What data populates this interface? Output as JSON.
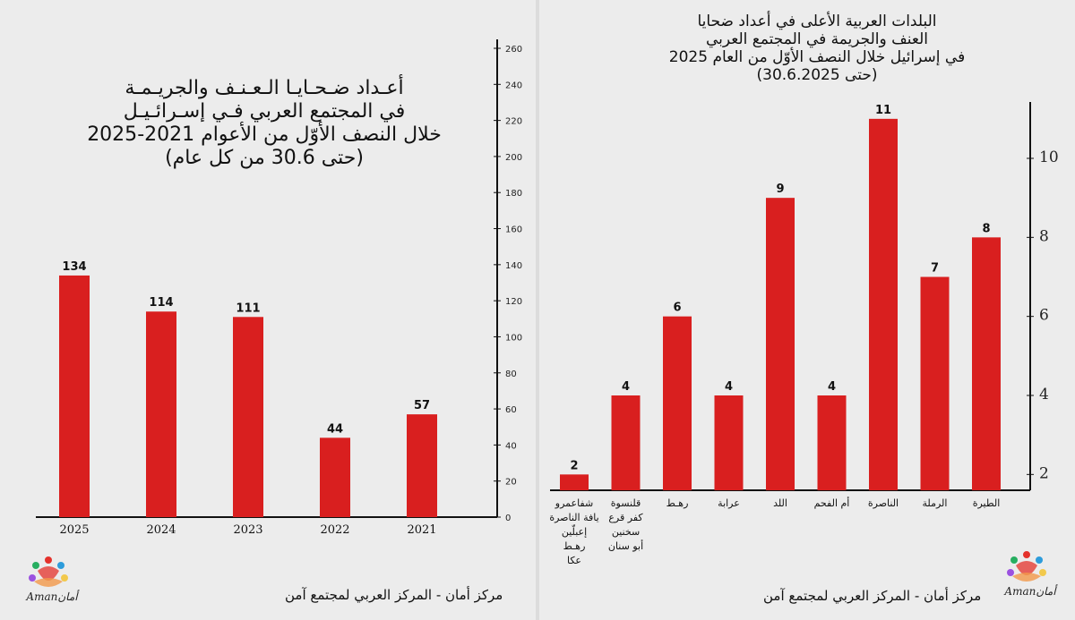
{
  "left": {
    "title_lines": [
      "أعـداد ضـحـايـا الـعـنـف والجريـمـة",
      "في المجتمع العربي فـي إسـرائـيـل",
      "خلال النصف الأوّل من الأعوام 2021-2025",
      "(حتى 30.6 من كل عام)"
    ],
    "footer": "مركز أمان  - المركز العربي لمجتمع آمن",
    "logo_text": "Amanأمان"
  },
  "right": {
    "title_lines": [
      "البلدات العربية الأعلى في أعداد ضحايا",
      "العنف والجريمة في المجتمع العربي",
      "في إسرائيل خلال النصف الأوّل من العام 2025",
      "(حتى 30.6.2025)"
    ],
    "footer": "مركز أمان  - المركز العربي لمجتمع آمن",
    "logo_text": "Amanأمان"
  },
  "colors": {
    "bar": "#d91f1f",
    "axis": "#111111",
    "background": "#ececec"
  },
  "chart_data": [
    {
      "type": "bar",
      "title": "أعداد ضحايا العنف والجريمة في المجتمع العربي في إسرائيل خلال النصف الأوّل من الأعوام 2021-2025 (حتى 30.6 من كل عام)",
      "categories": [
        "2025",
        "2024",
        "2023",
        "2022",
        "2021"
      ],
      "values": [
        134,
        114,
        111,
        44,
        57
      ],
      "ylim": [
        0,
        260
      ],
      "yticks": [
        0,
        20,
        40,
        60,
        80,
        100,
        120,
        140,
        160,
        180,
        200,
        220,
        240,
        260
      ],
      "y_axis_side": "right",
      "xlabel": "",
      "ylabel": ""
    },
    {
      "type": "bar",
      "title": "البلدات العربية الأعلى في أعداد ضحايا العنف والجريمة في المجتمع العربي في إسرائيل خلال النصف الأوّل من العام 2025 (حتى 30.6.2025)",
      "categories": [
        [
          "شفاعمرو",
          "يافة الناصرة",
          "إعبلّين",
          "رهـط",
          "عكا"
        ],
        [
          "قلنسوة",
          "كفر قرع",
          "سخنين",
          "أبو سنان"
        ],
        [
          "رهـط"
        ],
        [
          "عرابة"
        ],
        [
          "اللد"
        ],
        [
          "أم الفحم"
        ],
        [
          "الناصرة"
        ],
        [
          "الرملة"
        ],
        [
          "الطيرة"
        ]
      ],
      "values": [
        2,
        4,
        6,
        4,
        9,
        4,
        11,
        7,
        8
      ],
      "ylim": [
        1.6,
        11.2
      ],
      "yticks": [
        2,
        4,
        6,
        8,
        10
      ],
      "y_axis_side": "right",
      "xlabel": "",
      "ylabel": ""
    }
  ]
}
